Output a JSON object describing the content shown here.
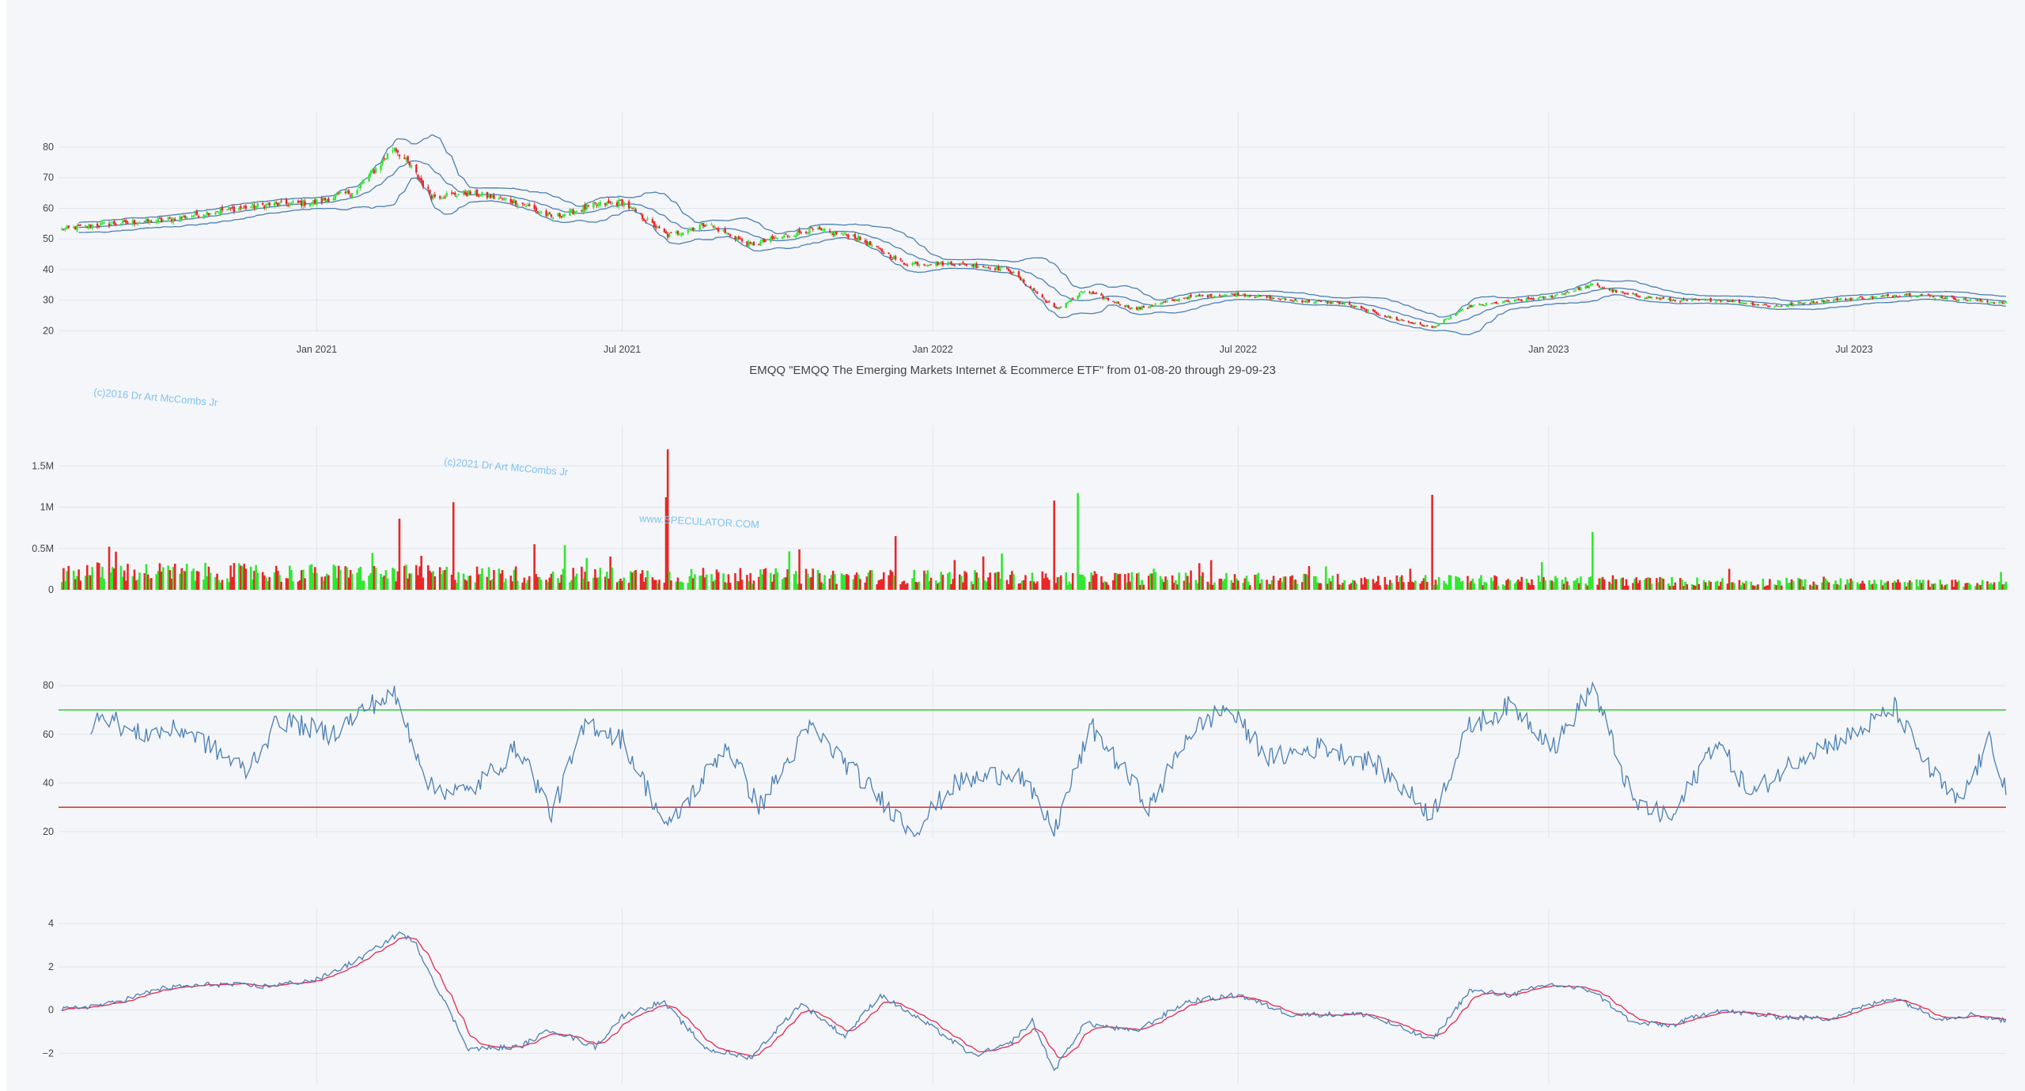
{
  "title": "EMQQ \"EMQQ The Emerging Markets Internet & Ecommerce ETF\" from 01-08-20 through 29-09-23",
  "watermarks": [
    "(c)2016 Dr Art McCombs Jr",
    "(c)2021 Dr Art McCombs Jr",
    "www.SPECULATOR.COM"
  ],
  "colors": {
    "up": "#32e632",
    "down": "#e62828",
    "band": "#4a7fb5",
    "rsi_line": "#4a7fb5",
    "rsi_upper": "#32cd32",
    "rsi_lower": "#dc2828",
    "macd": "#4a7fb5",
    "signal": "#e62850",
    "grid": "#e2e5ea",
    "background": "#f5f6f9"
  },
  "chart_data": [
    {
      "type": "candlestick",
      "name": "price",
      "x_range": [
        "2020-08-01",
        "2023-09-29"
      ],
      "x_ticks": [
        "Jan 2021",
        "Jul 2021",
        "Jan 2022",
        "Jul 2022",
        "Jan 2023",
        "Jul 2023"
      ],
      "y_ticks": [
        20,
        30,
        40,
        50,
        60,
        70,
        80
      ],
      "ylim": [
        17,
        88
      ],
      "overlays": [
        "bollinger_upper",
        "bollinger_middle",
        "bollinger_lower"
      ],
      "close_keypoints": [
        [
          "2020-08-01",
          53
        ],
        [
          "2020-09-01",
          55
        ],
        [
          "2020-10-01",
          56
        ],
        [
          "2020-11-01",
          59
        ],
        [
          "2020-12-01",
          61
        ],
        [
          "2021-01-01",
          62
        ],
        [
          "2021-01-25",
          66
        ],
        [
          "2021-02-16",
          80
        ],
        [
          "2021-02-25",
          74
        ],
        [
          "2021-03-10",
          64
        ],
        [
          "2021-04-01",
          65
        ],
        [
          "2021-05-01",
          62
        ],
        [
          "2021-05-20",
          57
        ],
        [
          "2021-06-15",
          61
        ],
        [
          "2021-07-01",
          62
        ],
        [
          "2021-07-28",
          51
        ],
        [
          "2021-08-20",
          55
        ],
        [
          "2021-09-15",
          48
        ],
        [
          "2021-10-20",
          53
        ],
        [
          "2021-11-15",
          51
        ],
        [
          "2021-12-15",
          42
        ],
        [
          "2022-01-15",
          42
        ],
        [
          "2022-02-15",
          40
        ],
        [
          "2022-03-15",
          27
        ],
        [
          "2022-04-01",
          33
        ],
        [
          "2022-05-01",
          27
        ],
        [
          "2022-06-01",
          31
        ],
        [
          "2022-07-01",
          32
        ],
        [
          "2022-08-01",
          30
        ],
        [
          "2022-09-01",
          29
        ],
        [
          "2022-10-01",
          24
        ],
        [
          "2022-10-24",
          21
        ],
        [
          "2022-11-15",
          28
        ],
        [
          "2022-12-15",
          30
        ],
        [
          "2023-01-01",
          31
        ],
        [
          "2023-01-27",
          35
        ],
        [
          "2023-02-15",
          32
        ],
        [
          "2023-03-15",
          30
        ],
        [
          "2023-04-15",
          30
        ],
        [
          "2023-05-15",
          28
        ],
        [
          "2023-06-15",
          30
        ],
        [
          "2023-07-15",
          31
        ],
        [
          "2023-08-01",
          32
        ],
        [
          "2023-09-29",
          29
        ]
      ]
    },
    {
      "type": "bar",
      "name": "volume",
      "x_range": [
        "2020-08-01",
        "2023-09-29"
      ],
      "y_ticks": [
        0,
        500000,
        1000000,
        1500000
      ],
      "y_tick_labels": [
        "0",
        "0.5M",
        "1M",
        "1.5M"
      ],
      "ylim": [
        0,
        1780000
      ],
      "spikes": [
        [
          "2021-07-28",
          1700000
        ],
        [
          "2021-07-27",
          1120000
        ],
        [
          "2021-03-23",
          1060000
        ],
        [
          "2022-03-14",
          1080000
        ],
        [
          "2022-03-28",
          1170000
        ],
        [
          "2022-10-24",
          1150000
        ],
        [
          "2023-01-27",
          700000
        ],
        [
          "2021-02-19",
          860000
        ],
        [
          "2021-12-10",
          650000
        ]
      ]
    },
    {
      "type": "line",
      "name": "rsi",
      "y_ticks": [
        20,
        40,
        60,
        80
      ],
      "ylim": [
        18,
        83
      ],
      "reference_lines": [
        70,
        30
      ],
      "keypoints": [
        [
          "2020-08-20",
          57
        ],
        [
          "2020-08-25",
          70
        ],
        [
          "2020-09-15",
          60
        ],
        [
          "2020-10-15",
          62
        ],
        [
          "2020-11-20",
          45
        ],
        [
          "2020-12-10",
          66
        ],
        [
          "2021-01-10",
          60
        ],
        [
          "2021-02-01",
          72
        ],
        [
          "2021-02-16",
          76
        ],
        [
          "2021-03-10",
          38
        ],
        [
          "2021-04-01",
          36
        ],
        [
          "2021-05-01",
          55
        ],
        [
          "2021-05-20",
          27
        ],
        [
          "2021-06-10",
          65
        ],
        [
          "2021-07-01",
          58
        ],
        [
          "2021-07-28",
          21
        ],
        [
          "2021-09-01",
          56
        ],
        [
          "2021-09-20",
          30
        ],
        [
          "2021-10-20",
          63
        ],
        [
          "2021-11-15",
          45
        ],
        [
          "2021-12-20",
          20
        ],
        [
          "2022-01-15",
          40
        ],
        [
          "2022-02-20",
          45
        ],
        [
          "2022-03-14",
          20
        ],
        [
          "2022-04-05",
          63
        ],
        [
          "2022-05-10",
          30
        ],
        [
          "2022-06-01",
          60
        ],
        [
          "2022-06-24",
          71
        ],
        [
          "2022-07-20",
          50
        ],
        [
          "2022-08-20",
          55
        ],
        [
          "2022-09-20",
          48
        ],
        [
          "2022-10-24",
          27
        ],
        [
          "2022-11-15",
          63
        ],
        [
          "2022-12-10",
          72
        ],
        [
          "2023-01-05",
          55
        ],
        [
          "2023-01-27",
          80
        ],
        [
          "2023-02-20",
          32
        ],
        [
          "2023-03-15",
          25
        ],
        [
          "2023-04-10",
          58
        ],
        [
          "2023-05-01",
          35
        ],
        [
          "2023-06-01",
          52
        ],
        [
          "2023-07-01",
          60
        ],
        [
          "2023-07-25",
          71
        ],
        [
          "2023-08-15",
          45
        ],
        [
          "2023-09-01",
          31
        ],
        [
          "2023-09-20",
          58
        ],
        [
          "2023-09-29",
          37
        ]
      ]
    },
    {
      "type": "line",
      "name": "macd",
      "y_ticks": [
        -2,
        0,
        2,
        4
      ],
      "y_tick_labels": [
        "−2",
        "0",
        "2",
        "4"
      ],
      "ylim": [
        -3.3,
        4.3
      ],
      "keypoints": [
        [
          "2020-08-01",
          0
        ],
        [
          "2020-09-01",
          0.3
        ],
        [
          "2020-10-01",
          1.0
        ],
        [
          "2020-11-01",
          1.2
        ],
        [
          "2020-12-01",
          1.1
        ],
        [
          "2021-01-01",
          1.4
        ],
        [
          "2021-01-25",
          2.3
        ],
        [
          "2021-02-20",
          3.6
        ],
        [
          "2021-03-01",
          3.0
        ],
        [
          "2021-03-15",
          0.8
        ],
        [
          "2021-04-01",
          -1.8
        ],
        [
          "2021-05-01",
          -1.7
        ],
        [
          "2021-05-20",
          -0.9
        ],
        [
          "2021-06-15",
          -1.7
        ],
        [
          "2021-07-01",
          -0.3
        ],
        [
          "2021-07-25",
          0.4
        ],
        [
          "2021-08-20",
          -1.8
        ],
        [
          "2021-09-15",
          -2.2
        ],
        [
          "2021-10-15",
          0.3
        ],
        [
          "2021-11-10",
          -1.2
        ],
        [
          "2021-12-01",
          0.7
        ],
        [
          "2022-01-01",
          -0.8
        ],
        [
          "2022-01-25",
          -2.1
        ],
        [
          "2022-02-15",
          -1.6
        ],
        [
          "2022-03-01",
          -0.5
        ],
        [
          "2022-03-14",
          -2.8
        ],
        [
          "2022-04-01",
          -0.6
        ],
        [
          "2022-05-01",
          -1.0
        ],
        [
          "2022-06-01",
          0.4
        ],
        [
          "2022-07-01",
          0.7
        ],
        [
          "2022-08-01",
          -0.2
        ],
        [
          "2022-09-15",
          -0.2
        ],
        [
          "2022-10-24",
          -1.4
        ],
        [
          "2022-11-15",
          0.9
        ],
        [
          "2022-12-10",
          0.7
        ],
        [
          "2023-01-01",
          1.2
        ],
        [
          "2023-01-27",
          0.9
        ],
        [
          "2023-02-20",
          -0.6
        ],
        [
          "2023-03-15",
          -0.7
        ],
        [
          "2023-04-10",
          0
        ],
        [
          "2023-05-15",
          -0.3
        ],
        [
          "2023-06-15",
          -0.4
        ],
        [
          "2023-07-25",
          0.6
        ],
        [
          "2023-08-20",
          -0.4
        ],
        [
          "2023-09-10",
          -0.2
        ],
        [
          "2023-09-29",
          -0.5
        ]
      ]
    }
  ]
}
